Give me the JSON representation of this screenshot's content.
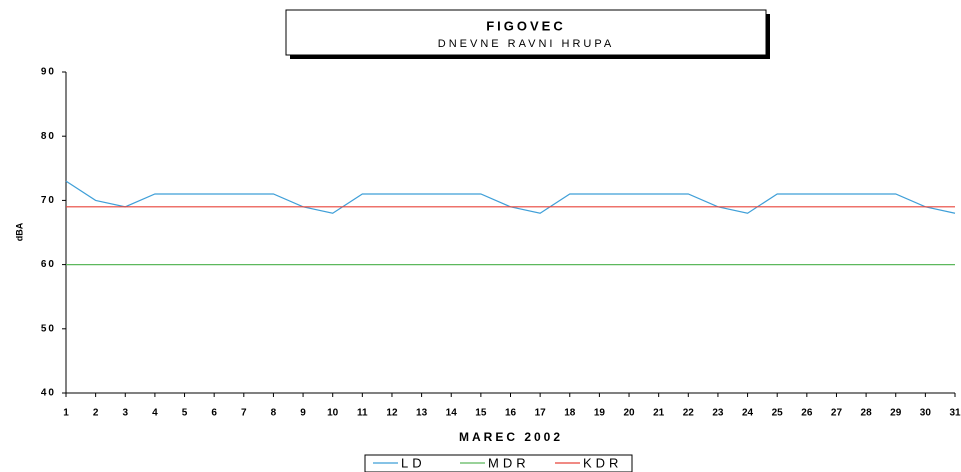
{
  "chart_data": {
    "type": "line",
    "title": "FIGOVEC",
    "subtitle": "DNEVNE RAVNI HRUPA",
    "xlabel": "MAREC 2002",
    "ylabel": "dBA",
    "categories": [
      "1",
      "2",
      "3",
      "4",
      "5",
      "6",
      "7",
      "8",
      "9",
      "10",
      "11",
      "12",
      "13",
      "14",
      "15",
      "16",
      "17",
      "18",
      "19",
      "20",
      "21",
      "22",
      "23",
      "24",
      "25",
      "26",
      "27",
      "28",
      "29",
      "30",
      "31"
    ],
    "series": [
      {
        "name": "LD",
        "color": "#3f9fd8",
        "values": [
          73,
          70,
          69,
          71,
          71,
          71,
          71,
          71,
          69,
          68,
          71,
          71,
          71,
          71,
          71,
          69,
          68,
          71,
          71,
          71,
          71,
          71,
          69,
          68,
          71,
          71,
          71,
          71,
          71,
          69,
          68
        ]
      },
      {
        "name": "MDR",
        "color": "#5cb85c",
        "values": [
          60,
          60,
          60,
          60,
          60,
          60,
          60,
          60,
          60,
          60,
          60,
          60,
          60,
          60,
          60,
          60,
          60,
          60,
          60,
          60,
          60,
          60,
          60,
          60,
          60,
          60,
          60,
          60,
          60,
          60,
          60
        ]
      },
      {
        "name": "KDR",
        "color": "#e8443a",
        "values": [
          69,
          69,
          69,
          69,
          69,
          69,
          69,
          69,
          69,
          69,
          69,
          69,
          69,
          69,
          69,
          69,
          69,
          69,
          69,
          69,
          69,
          69,
          69,
          69,
          69,
          69,
          69,
          69,
          69,
          69,
          69
        ]
      }
    ],
    "ylim": [
      40,
      90
    ],
    "yticks": [
      40,
      50,
      60,
      70,
      80,
      90
    ],
    "grid": false,
    "legend": "bottom"
  }
}
